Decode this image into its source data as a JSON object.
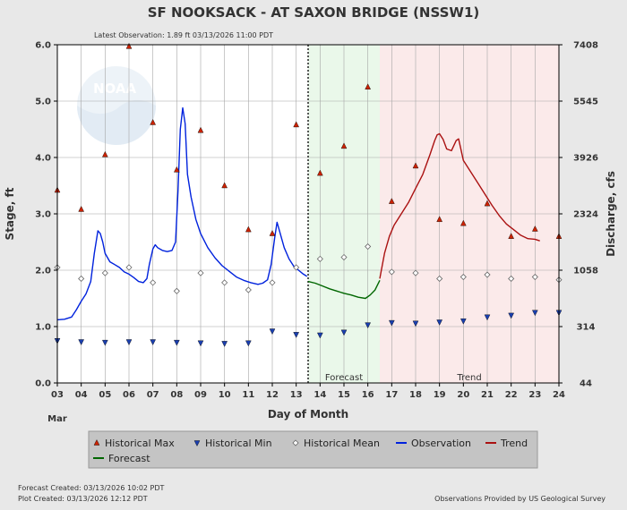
{
  "chart_data": {
    "type": "line",
    "title": "SF NOOKSACK - AT SAXON BRIDGE  (NSSW1)",
    "subtitle": "Latest Observation: 1.89 ft 03/13/2026 11:00 PDT",
    "xlabel": "Day of Month",
    "x_month_label": "Mar",
    "ylabel_left": "Stage, ft",
    "ylabel_right": "Discharge, cfs",
    "xlim": [
      3,
      24
    ],
    "ylim": [
      0,
      6
    ],
    "x_ticks": [
      3,
      4,
      5,
      6,
      7,
      8,
      9,
      10,
      11,
      12,
      13,
      14,
      15,
      16,
      17,
      18,
      19,
      20,
      21,
      22,
      23,
      24
    ],
    "x_tick_labels": [
      "03",
      "04",
      "05",
      "06",
      "07",
      "08",
      "09",
      "10",
      "11",
      "12",
      "13",
      "14",
      "15",
      "16",
      "17",
      "18",
      "19",
      "20",
      "21",
      "22",
      "23",
      "24"
    ],
    "y_ticks": [
      0,
      1,
      2,
      3,
      4,
      5,
      6
    ],
    "y_tick_labels": [
      "0.0",
      "1.0",
      "2.0",
      "3.0",
      "4.0",
      "5.0",
      "6.0"
    ],
    "right_ticks": [
      {
        "stage": 0,
        "label": "44"
      },
      {
        "stage": 1,
        "label": "314"
      },
      {
        "stage": 2,
        "label": "1058"
      },
      {
        "stage": 3,
        "label": "2324"
      },
      {
        "stage": 4,
        "label": "3926"
      },
      {
        "stage": 5,
        "label": "5545"
      },
      {
        "stage": 6,
        "label": "7408"
      }
    ],
    "grid": true,
    "current_time_x": 13.5,
    "regions": [
      {
        "name": "Forecast",
        "x_start": 13.5,
        "x_end": 16.5,
        "color": "#eaf8ea"
      },
      {
        "name": "Trend",
        "x_start": 16.5,
        "x_end": 24,
        "color": "#fbeaea"
      }
    ],
    "series": [
      {
        "name": "Historical Max",
        "style": "triangle-up",
        "color": "#cc2200",
        "x": [
          3,
          4,
          5,
          6,
          7,
          8,
          9,
          10,
          11,
          12,
          13,
          14,
          15,
          16,
          17,
          18,
          19,
          20,
          21,
          22,
          23,
          24
        ],
        "y": [
          3.42,
          3.08,
          4.05,
          5.97,
          4.62,
          3.78,
          4.48,
          3.5,
          2.72,
          2.65,
          4.58,
          3.72,
          4.2,
          5.25,
          3.22,
          3.85,
          2.9,
          2.83,
          3.18,
          2.6,
          2.73,
          2.6
        ]
      },
      {
        "name": "Historical Min",
        "style": "triangle-down",
        "color": "#1a3fb0",
        "x": [
          3,
          4,
          5,
          6,
          7,
          8,
          9,
          10,
          11,
          12,
          13,
          14,
          15,
          16,
          17,
          18,
          19,
          20,
          21,
          22,
          23,
          24
        ],
        "y": [
          0.75,
          0.73,
          0.72,
          0.73,
          0.73,
          0.72,
          0.71,
          0.7,
          0.71,
          0.92,
          0.86,
          0.85,
          0.9,
          1.03,
          1.07,
          1.06,
          1.08,
          1.1,
          1.17,
          1.2,
          1.25,
          1.25
        ]
      },
      {
        "name": "Historical Mean",
        "style": "diamond",
        "color": "#999999",
        "x": [
          3,
          4,
          5,
          6,
          7,
          8,
          9,
          10,
          11,
          12,
          13,
          14,
          15,
          16,
          17,
          18,
          19,
          20,
          21,
          22,
          23,
          24
        ],
        "y": [
          2.05,
          1.85,
          1.95,
          2.05,
          1.78,
          1.63,
          1.95,
          1.78,
          1.65,
          1.78,
          2.05,
          2.2,
          2.23,
          2.42,
          1.97,
          1.95,
          1.85,
          1.88,
          1.92,
          1.85,
          1.88,
          1.83
        ]
      },
      {
        "name": "Observation",
        "style": "line",
        "color": "#0022dd",
        "x": [
          3.0,
          3.3,
          3.6,
          3.8,
          4.0,
          4.2,
          4.4,
          4.55,
          4.7,
          4.8,
          4.9,
          5.0,
          5.2,
          5.4,
          5.6,
          5.8,
          6.0,
          6.2,
          6.4,
          6.6,
          6.75,
          6.85,
          7.0,
          7.1,
          7.2,
          7.4,
          7.6,
          7.8,
          7.95,
          8.05,
          8.15,
          8.25,
          8.35,
          8.45,
          8.6,
          8.8,
          9.0,
          9.3,
          9.6,
          9.9,
          10.2,
          10.5,
          10.8,
          11.1,
          11.4,
          11.6,
          11.8,
          11.95,
          12.1,
          12.2,
          12.3,
          12.5,
          12.7,
          12.9,
          13.1,
          13.3,
          13.45
        ],
        "y": [
          1.12,
          1.13,
          1.17,
          1.3,
          1.45,
          1.58,
          1.8,
          2.3,
          2.7,
          2.65,
          2.5,
          2.3,
          2.15,
          2.1,
          2.05,
          1.97,
          1.93,
          1.87,
          1.8,
          1.78,
          1.85,
          2.1,
          2.38,
          2.45,
          2.4,
          2.35,
          2.33,
          2.35,
          2.5,
          3.4,
          4.5,
          4.88,
          4.6,
          3.7,
          3.3,
          2.9,
          2.65,
          2.4,
          2.22,
          2.08,
          1.98,
          1.88,
          1.82,
          1.78,
          1.75,
          1.77,
          1.83,
          2.1,
          2.58,
          2.85,
          2.7,
          2.4,
          2.2,
          2.07,
          2.0,
          1.93,
          1.89
        ]
      },
      {
        "name": "Forecast",
        "style": "line",
        "color": "#006600",
        "x": [
          13.5,
          13.8,
          14.1,
          14.4,
          14.7,
          15.0,
          15.3,
          15.6,
          15.9,
          16.1,
          16.3,
          16.5
        ],
        "y": [
          1.8,
          1.77,
          1.72,
          1.67,
          1.63,
          1.59,
          1.56,
          1.52,
          1.5,
          1.56,
          1.65,
          1.82
        ]
      },
      {
        "name": "Trend",
        "style": "line",
        "color": "#aa1111",
        "x": [
          16.5,
          16.7,
          16.9,
          17.1,
          17.4,
          17.7,
          18.0,
          18.3,
          18.6,
          18.8,
          18.9,
          19.0,
          19.15,
          19.3,
          19.5,
          19.7,
          19.8,
          20.0,
          20.3,
          20.6,
          20.9,
          21.2,
          21.5,
          21.8,
          22.1,
          22.4,
          22.7,
          23.0,
          23.2
        ],
        "y": [
          1.85,
          2.3,
          2.6,
          2.8,
          3.0,
          3.2,
          3.45,
          3.7,
          4.05,
          4.3,
          4.4,
          4.42,
          4.32,
          4.15,
          4.12,
          4.3,
          4.33,
          3.95,
          3.75,
          3.55,
          3.35,
          3.15,
          2.97,
          2.82,
          2.72,
          2.62,
          2.56,
          2.55,
          2.52
        ]
      }
    ],
    "legend": {
      "placement": "bottom",
      "items": [
        {
          "label": "Historical Max",
          "symbol": "triangle-up",
          "color": "#cc2200"
        },
        {
          "label": "Historical Min",
          "symbol": "triangle-down",
          "color": "#1a3fb0"
        },
        {
          "label": "Historical Mean",
          "symbol": "diamond",
          "color": "#999999"
        },
        {
          "label": "Observation",
          "symbol": "line",
          "color": "#0022dd"
        },
        {
          "label": "Trend",
          "symbol": "line",
          "color": "#aa1111"
        },
        {
          "label": "Forecast",
          "symbol": "line",
          "color": "#006600"
        }
      ]
    },
    "footer": {
      "forecast_created": "Forecast Created: 03/13/2026 10:02 PDT",
      "plot_created": "Plot Created: 03/13/2026 12:12 PDT",
      "credit": "Observations Provided by US Geological Survey"
    },
    "watermark_logo_text": "NOAA"
  }
}
